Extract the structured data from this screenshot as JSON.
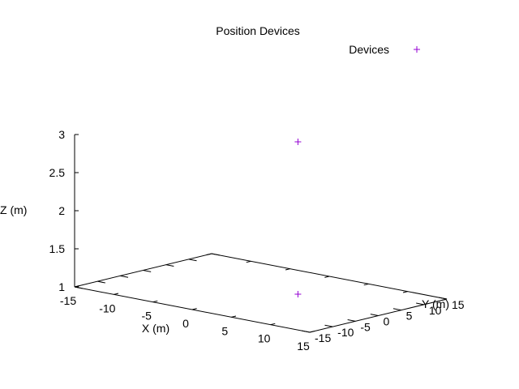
{
  "chart_data": {
    "type": "scatter",
    "title": "Position Devices",
    "xlabel": "X (m)",
    "ylabel": "Y (m)",
    "zlabel": "Z (m)",
    "xlim": [
      -15,
      15
    ],
    "ylim": [
      -15,
      15
    ],
    "zlim": [
      1,
      3
    ],
    "x_ticks": [
      "-15",
      "-10",
      "-5",
      "0",
      "5",
      "10",
      "15"
    ],
    "y_ticks": [
      "-15",
      "-10",
      "-5",
      "0",
      "5",
      "10",
      "15"
    ],
    "z_ticks": [
      "1",
      "1.5",
      "2",
      "2.5",
      "3"
    ],
    "grid": false,
    "legend_position": "top-right",
    "series": [
      {
        "name": "Devices",
        "color": "#9400d3",
        "marker": "plus",
        "points": [
          {
            "x": 3,
            "y": 3,
            "z": 1
          },
          {
            "x": 3,
            "y": 3,
            "z": 3
          }
        ]
      }
    ]
  }
}
